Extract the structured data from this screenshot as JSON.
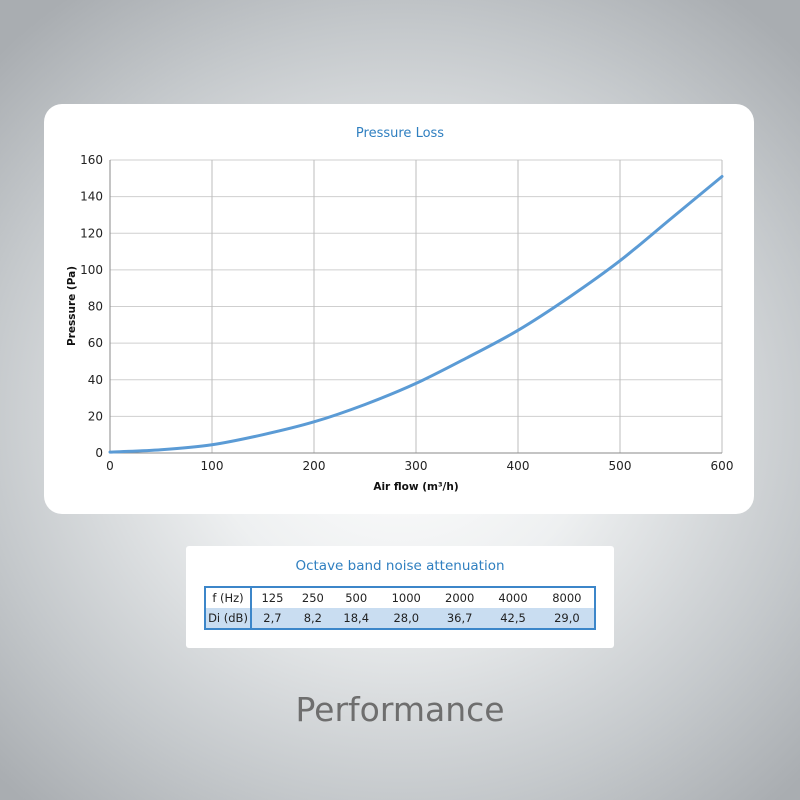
{
  "chart_data": {
    "type": "line",
    "title": "Pressure Loss",
    "xlabel": "Air flow (m³/h)",
    "ylabel": "Pressure (Pa)",
    "xlim": [
      0,
      600
    ],
    "ylim": [
      0,
      160
    ],
    "xticks": [
      0,
      100,
      200,
      300,
      400,
      500,
      600
    ],
    "yticks": [
      0,
      20,
      40,
      60,
      80,
      100,
      120,
      140,
      160
    ],
    "grid": true,
    "line_color": "#5b9bd5",
    "series": [
      {
        "x": [
          0,
          50,
          100,
          150,
          200,
          250,
          300,
          350,
          400,
          450,
          500,
          550,
          600
        ],
        "y": [
          0.5,
          1.8,
          4.5,
          10,
          17,
          26.5,
          38,
          52,
          67,
          85,
          105,
          128,
          151
        ]
      }
    ]
  },
  "noise_table": {
    "title": "Octave band noise attenuation",
    "rows": [
      {
        "label": "f (Hz)",
        "values": [
          "125",
          "250",
          "500",
          "1000",
          "2000",
          "4000",
          "8000"
        ]
      },
      {
        "label": "Di (dB)",
        "values": [
          "2,7",
          "8,2",
          "18,4",
          "28,0",
          "36,7",
          "42,5",
          "29,0"
        ]
      }
    ]
  },
  "footer": {
    "title": "Performance"
  },
  "colors": {
    "accent": "#2f7fc0",
    "table_border": "#3c86c9",
    "table_row_fill": "#c9ddf1"
  }
}
